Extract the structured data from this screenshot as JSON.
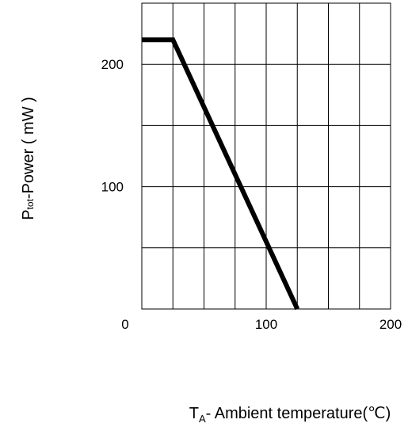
{
  "chart_data": {
    "type": "line",
    "title": "",
    "ylabel": {
      "main": "P",
      "subscript": "tot",
      "rest": "-Power ( mW )"
    },
    "xlabel": {
      "main": "T",
      "subscript": "A",
      "rest": "- Ambient  temperature(℃)"
    },
    "xlim": [
      0,
      200
    ],
    "ylim": [
      0,
      250
    ],
    "x_ticks": [
      {
        "value": 0,
        "label": "0"
      },
      {
        "value": 100,
        "label": "100"
      },
      {
        "value": 200,
        "label": "200"
      }
    ],
    "y_ticks": [
      {
        "value": 100,
        "label": "100"
      },
      {
        "value": 200,
        "label": "200"
      }
    ],
    "x_grid_step": 25,
    "y_grid_step": 50,
    "grid": true,
    "series": [
      {
        "color": "#000000",
        "x": [
          0,
          25,
          125
        ],
        "y": [
          220,
          220,
          0
        ]
      }
    ]
  }
}
